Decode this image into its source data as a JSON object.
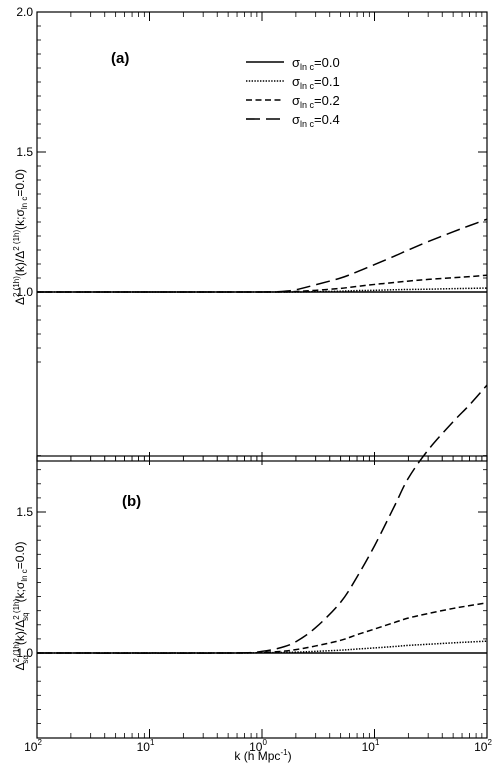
{
  "figure": {
    "x_label_main": "k (h Mpc",
    "x_label_sup": "-1",
    "x_label_close": ")"
  },
  "chart_data": [
    {
      "type": "line",
      "panel_label": "(a)",
      "ylabel": "Δ²⁽¹ʰ⁾(k)/Δ²⁽¹ʰ⁾(k;σ_ln c=0.0)",
      "xscale": "log",
      "xlim": [
        0.01,
        100
      ],
      "ylim": [
        0.75,
        2.0
      ],
      "x_ticks": [
        0.01,
        0.1,
        1,
        10,
        100
      ],
      "x_tick_labels": [
        {
          "base": "10",
          "exp": "2"
        },
        {
          "base": "10",
          "exp": "1"
        },
        {
          "base": "10",
          "exp": "0"
        },
        {
          "base": "10",
          "exp": "1"
        },
        {
          "base": "10",
          "exp": "2"
        }
      ],
      "y_ticks": [
        1.0,
        1.5,
        2.0
      ],
      "y_tick_labels": [
        "1.0",
        "1.5",
        "2.0"
      ],
      "legend_position": "top-right",
      "legend": [
        {
          "symbol": "σ",
          "sub": "ln c",
          "value": "=0.0",
          "dash": "solid"
        },
        {
          "symbol": "σ",
          "sub": "ln c",
          "value": "=0.1",
          "dash": "dotted"
        },
        {
          "symbol": "σ",
          "sub": "ln c",
          "value": "=0.2",
          "dash": "short"
        },
        {
          "symbol": "σ",
          "sub": "ln c",
          "value": "=0.4",
          "dash": "long"
        }
      ],
      "x": [
        0.01,
        0.5,
        1.0,
        1.5,
        2.0,
        3.0,
        5.0,
        7.0,
        10.0,
        15.0,
        20.0,
        30.0,
        50.0,
        70.0,
        100.0
      ],
      "series": [
        {
          "name": "σ_ln c=0.0",
          "dash": "solid",
          "values": [
            1.0,
            1.0,
            1.0,
            1.0,
            1.0,
            1.0,
            1.0,
            1.0,
            1.0,
            1.0,
            1.0,
            1.0,
            1.0,
            1.0,
            1.0
          ]
        },
        {
          "name": "σ_ln c=0.1",
          "dash": "dotted",
          "values": [
            1.0,
            1.0,
            1.0,
            1.0,
            1.0,
            1.001,
            1.003,
            1.005,
            1.006,
            1.008,
            1.009,
            1.01,
            1.012,
            1.013,
            1.014
          ]
        },
        {
          "name": "σ_ln c=0.2",
          "dash": "short",
          "values": [
            1.0,
            1.0,
            1.0,
            1.0,
            1.002,
            1.006,
            1.013,
            1.02,
            1.027,
            1.034,
            1.039,
            1.045,
            1.051,
            1.055,
            1.06
          ]
        },
        {
          "name": "σ_ln c=0.4",
          "dash": "long",
          "values": [
            1.0,
            1.0,
            1.0,
            1.002,
            1.008,
            1.026,
            1.05,
            1.072,
            1.098,
            1.128,
            1.15,
            1.18,
            1.215,
            1.237,
            1.26
          ]
        }
      ]
    },
    {
      "type": "line",
      "panel_label": "(b)",
      "ylabel": "Δ²ₛq⁽¹ʰ⁾(k)/Δ²ₛq⁽¹ʰ⁾(k;σ_ln c=0.0)",
      "xscale": "log",
      "xlim": [
        0.01,
        100
      ],
      "ylim": [
        0.75,
        2.0
      ],
      "x_ticks": [
        0.01,
        0.1,
        1,
        10,
        100
      ],
      "y_ticks": [
        1.0,
        1.5
      ],
      "y_tick_labels": [
        "1.0",
        "1.5"
      ],
      "x": [
        0.01,
        0.5,
        1.0,
        1.5,
        2.0,
        3.0,
        5.0,
        7.0,
        10.0,
        15.0,
        20.0,
        30.0,
        50.0,
        70.0,
        100.0
      ],
      "series": [
        {
          "name": "σ_ln c=0.0",
          "dash": "solid",
          "values": [
            1.0,
            1.0,
            1.0,
            1.0,
            1.0,
            1.0,
            1.0,
            1.0,
            1.0,
            1.0,
            1.0,
            1.0,
            1.0,
            1.0,
            1.0
          ]
        },
        {
          "name": "σ_ln c=0.1",
          "dash": "dotted",
          "values": [
            1.0,
            1.0,
            1.001,
            1.002,
            1.003,
            1.006,
            1.01,
            1.014,
            1.018,
            1.023,
            1.027,
            1.031,
            1.036,
            1.039,
            1.042
          ]
        },
        {
          "name": "σ_ln c=0.2",
          "dash": "short",
          "values": [
            1.0,
            1.0,
            1.002,
            1.006,
            1.012,
            1.025,
            1.045,
            1.065,
            1.085,
            1.108,
            1.124,
            1.14,
            1.158,
            1.168,
            1.178
          ]
        },
        {
          "name": "σ_ln c=0.4",
          "dash": "long",
          "values": [
            1.0,
            1.0,
            1.006,
            1.02,
            1.04,
            1.09,
            1.18,
            1.27,
            1.38,
            1.52,
            1.62,
            1.72,
            1.82,
            1.88,
            1.95
          ]
        }
      ]
    }
  ]
}
